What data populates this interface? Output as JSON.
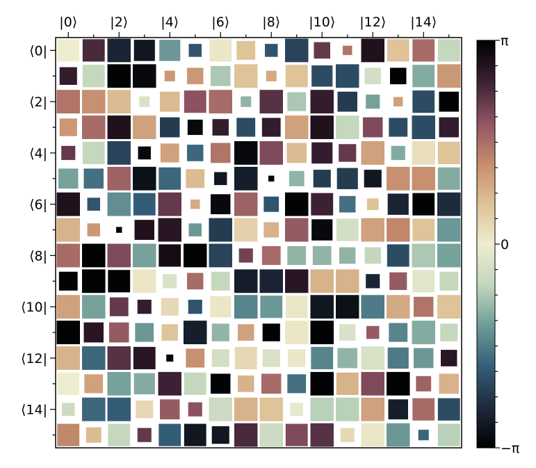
{
  "chart_data": {
    "type": "heatmap",
    "style": "hinton",
    "title": "",
    "xlabel": "",
    "ylabel": "",
    "x_ticklabels": [
      "|0⟩",
      "|2⟩",
      "|4⟩",
      "|6⟩",
      "|8⟩",
      "|10⟩",
      "|12⟩",
      "|14⟩"
    ],
    "y_ticklabels": [
      "⟨0|",
      "⟨2|",
      "⟨4|",
      "⟨6|",
      "⟨8|",
      "⟨10|",
      "⟨12|",
      "⟨14|"
    ],
    "colorbar": {
      "range": [
        -3.14159,
        3.14159
      ],
      "tick_labels": [
        "−π",
        "0",
        "π"
      ],
      "colors": [
        "#000000",
        "#1e2a3c",
        "#345e78",
        "#6f9c98",
        "#c3d7bd",
        "#eeedcf",
        "#dec196",
        "#c58b6c",
        "#8e5362",
        "#3a2034",
        "#000000"
      ]
    },
    "size": [
      [
        0.95,
        0.95,
        1.0,
        0.9,
        0.9,
        0.55,
        0.95,
        0.8,
        0.55,
        1.0,
        0.7,
        0.4,
        1.0,
        0.95,
        0.95,
        0.95
      ],
      [
        0.75,
        0.95,
        1.0,
        1.0,
        0.45,
        0.7,
        0.85,
        1.0,
        0.45,
        0.95,
        0.9,
        1.0,
        0.7,
        0.7,
        0.95,
        1.0
      ],
      [
        1.0,
        1.0,
        1.0,
        0.45,
        0.85,
        0.95,
        1.0,
        0.45,
        1.0,
        0.8,
        1.0,
        0.85,
        0.6,
        0.4,
        0.95,
        0.85
      ],
      [
        0.75,
        1.0,
        1.0,
        1.0,
        0.85,
        0.65,
        0.7,
        0.8,
        0.8,
        1.0,
        1.0,
        1.0,
        0.85,
        0.8,
        1.0,
        0.85
      ],
      [
        0.6,
        0.95,
        1.0,
        0.55,
        0.8,
        0.7,
        0.85,
        1.0,
        1.0,
        0.85,
        0.9,
        0.75,
        1.0,
        0.6,
        1.0,
        0.95
      ],
      [
        0.85,
        0.85,
        1.0,
        1.0,
        0.95,
        0.8,
        0.55,
        1.0,
        0.25,
        0.65,
        0.75,
        0.9,
        0.75,
        1.0,
        1.0,
        0.95
      ],
      [
        1.0,
        0.55,
        1.0,
        0.95,
        1.0,
        0.4,
        0.85,
        1.0,
        0.65,
        1.0,
        0.95,
        0.7,
        0.5,
        0.9,
        0.95,
        1.0
      ],
      [
        1.0,
        0.55,
        0.25,
        0.85,
        1.0,
        0.55,
        1.0,
        1.0,
        0.65,
        1.0,
        0.9,
        0.95,
        1.0,
        1.0,
        0.95,
        1.0
      ],
      [
        1.0,
        1.0,
        1.0,
        1.0,
        0.95,
        1.0,
        1.0,
        0.6,
        0.8,
        0.8,
        0.8,
        0.7,
        0.7,
        0.95,
        1.0,
        1.0
      ],
      [
        0.8,
        1.0,
        0.95,
        1.0,
        0.6,
        0.7,
        0.8,
        1.0,
        1.0,
        1.0,
        1.0,
        1.0,
        0.6,
        0.75,
        0.95,
        0.8
      ],
      [
        1.0,
        1.0,
        0.8,
        0.6,
        0.75,
        0.6,
        0.9,
        1.0,
        0.95,
        0.95,
        1.0,
        1.0,
        1.0,
        1.0,
        0.85,
        1.0
      ],
      [
        1.0,
        0.85,
        0.85,
        0.8,
        0.7,
        1.0,
        0.75,
        0.7,
        0.75,
        1.0,
        1.0,
        0.7,
        0.55,
        0.8,
        1.0,
        0.75
      ],
      [
        1.0,
        1.0,
        1.0,
        0.95,
        0.3,
        0.8,
        0.75,
        0.95,
        0.75,
        0.75,
        0.95,
        0.85,
        1.0,
        0.9,
        0.85,
        0.7
      ],
      [
        0.95,
        0.8,
        1.0,
        0.9,
        1.0,
        0.95,
        0.85,
        0.7,
        0.85,
        0.8,
        1.0,
        0.95,
        1.0,
        1.0,
        0.65,
        0.85
      ],
      [
        0.55,
        1.0,
        1.0,
        0.75,
        0.85,
        0.6,
        1.0,
        1.0,
        1.0,
        0.55,
        1.0,
        1.0,
        1.0,
        0.85,
        0.95,
        0.95
      ],
      [
        0.95,
        0.65,
        0.95,
        0.6,
        0.95,
        0.95,
        0.75,
        1.0,
        1.0,
        0.95,
        1.0,
        0.6,
        1.0,
        1.0,
        0.45,
        0.95
      ]
    ],
    "phase": [
      [
        0.0,
        2.4,
        -2.6,
        -2.8,
        -1.3,
        -2.0,
        0.1,
        0.6,
        -2.0,
        -2.2,
        2.2,
        1.5,
        2.8,
        0.6,
        1.6,
        -0.6
      ],
      [
        2.6,
        -0.6,
        -3.1,
        -3.0,
        1.1,
        1.1,
        -0.8,
        0.6,
        0.9,
        0.6,
        -2.1,
        -2.1,
        -0.4,
        -3.1,
        -1.1,
        1.1
      ],
      [
        1.5,
        1.2,
        0.7,
        -0.3,
        0.7,
        1.9,
        1.6,
        -1.0,
        2.3,
        -0.8,
        2.6,
        -2.3,
        -1.2,
        1.0,
        -2.1,
        -3.1
      ],
      [
        1.1,
        1.6,
        2.8,
        1.0,
        -2.3,
        -3.0,
        2.6,
        -2.1,
        2.6,
        1.0,
        2.8,
        -0.6,
        2.0,
        -2.1,
        -2.1,
        2.6
      ],
      [
        2.2,
        -0.6,
        -2.2,
        -3.0,
        1.0,
        -1.8,
        1.5,
        -3.0,
        2.0,
        0.7,
        2.6,
        2.2,
        1.0,
        -1.1,
        0.2,
        0.6
      ],
      [
        -1.2,
        -1.7,
        1.7,
        -2.9,
        -1.8,
        0.7,
        -2.8,
        -2.7,
        -3.1,
        -1.0,
        -2.3,
        -2.3,
        -2.8,
        1.2,
        1.2,
        -1.1
      ],
      [
        2.8,
        -2.0,
        -1.4,
        -1.9,
        2.2,
        0.9,
        -3.0,
        1.7,
        -2.0,
        -3.1,
        2.5,
        -1.7,
        0.6,
        -2.6,
        -3.1,
        -2.5
      ],
      [
        0.8,
        1.1,
        -3.1,
        2.8,
        2.7,
        -1.3,
        -2.3,
        0.4,
        0.8,
        1.8,
        -3.0,
        -0.4,
        1.0,
        1.3,
        0.6,
        -1.3
      ],
      [
        1.6,
        -3.1,
        2.0,
        -1.2,
        2.9,
        -3.1,
        -2.2,
        2.1,
        1.6,
        -1.0,
        -1.0,
        -1.0,
        -0.6,
        -2.1,
        -0.8,
        -1.2
      ],
      [
        -3.1,
        -3.1,
        -3.1,
        0.1,
        -0.3,
        1.6,
        -0.6,
        -2.7,
        -2.6,
        2.7,
        0.8,
        0.8,
        -2.6,
        1.8,
        -0.2,
        -0.6
      ],
      [
        1.0,
        -1.2,
        2.2,
        2.6,
        0.3,
        -2.0,
        0.1,
        -1.5,
        -1.3,
        0.1,
        -2.8,
        -2.9,
        -1.6,
        0.9,
        1.5,
        0.6
      ],
      [
        -3.1,
        2.7,
        1.8,
        -1.3,
        0.6,
        -2.7,
        -1.0,
        1.0,
        -3.1,
        0.1,
        -3.1,
        -0.3,
        1.8,
        -1.5,
        -1.1,
        -0.6
      ],
      [
        0.8,
        -1.8,
        2.3,
        2.7,
        -3.1,
        1.2,
        -0.4,
        0.3,
        -0.3,
        0.1,
        -1.5,
        -1.0,
        -0.3,
        -1.6,
        -1.3,
        2.7
      ],
      [
        0.0,
        1.0,
        -1.2,
        -1.1,
        2.5,
        -0.6,
        -3.1,
        0.8,
        1.6,
        -1.7,
        -3.1,
        0.8,
        2.0,
        -3.1,
        1.7,
        0.8
      ],
      [
        -0.5,
        -1.8,
        -1.9,
        0.3,
        1.8,
        1.9,
        -0.5,
        0.8,
        0.6,
        -0.1,
        -0.7,
        -0.7,
        1.0,
        -2.7,
        1.6,
        -2.1
      ],
      [
        1.3,
        0.7,
        -0.6,
        2.2,
        -1.9,
        -2.8,
        -2.8,
        2.4,
        -0.5,
        2.0,
        2.3,
        0.3,
        0.1,
        -1.3,
        -1.8,
        -0.7
      ]
    ]
  }
}
